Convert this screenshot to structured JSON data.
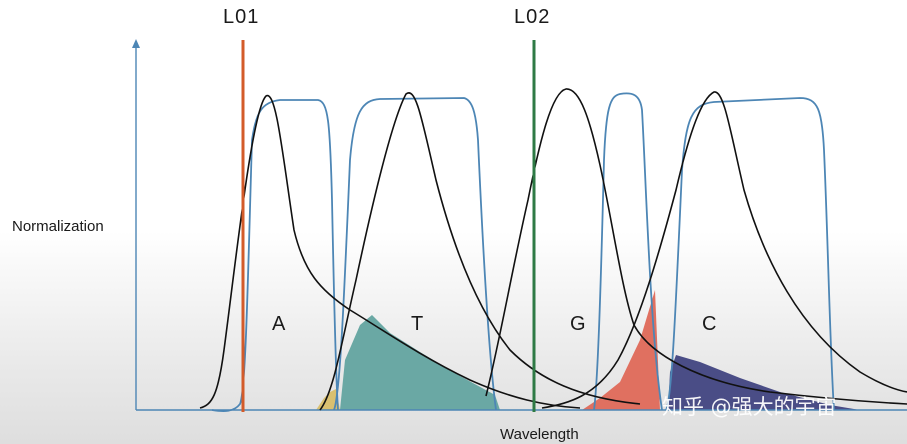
{
  "labels": {
    "laser_1": "L01",
    "laser_2": "L02",
    "y_axis": "Normalization",
    "x_axis": "Wavelength",
    "dyes": [
      "A",
      "T",
      "G",
      "C"
    ],
    "watermark": "知乎 @强大的宇宙"
  },
  "colors": {
    "axis": "#4d86b5",
    "laser_1": "#d35b2a",
    "laser_2": "#2e7a45",
    "filter_curve": "#4d86b5",
    "emission_curve": "#111111",
    "overlap_A_T": "#d9c070",
    "overlap_T_G": "#6aa8a4",
    "overlap_G_C": "#e07060",
    "overlap_C_tail": "#4a4d86"
  }
}
